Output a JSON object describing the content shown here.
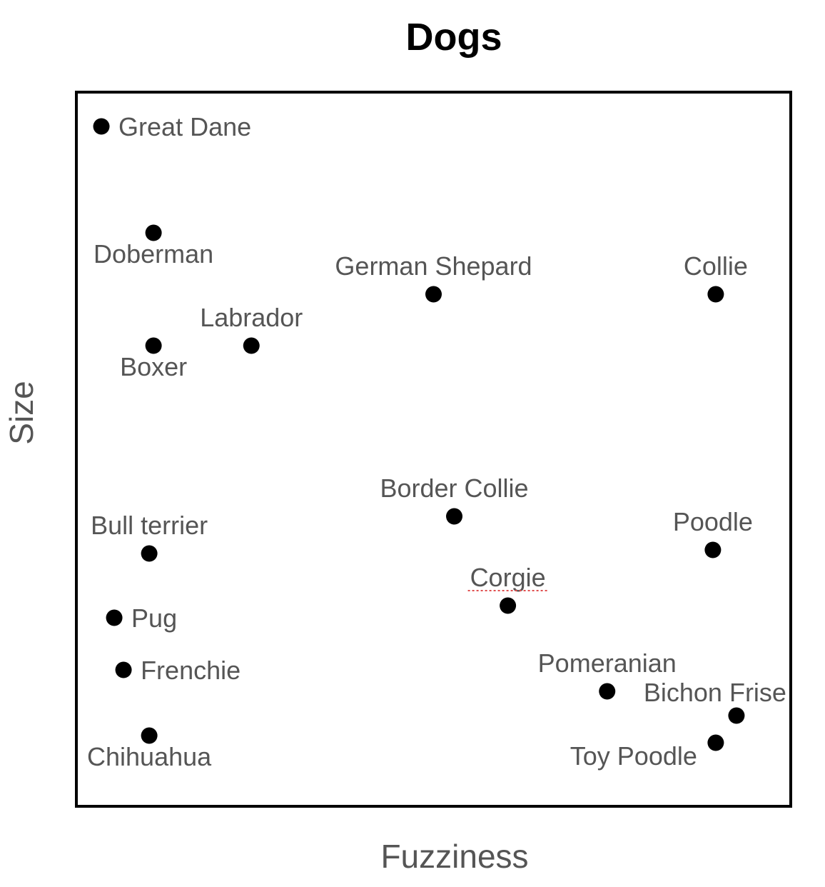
{
  "chart_data": {
    "type": "scatter",
    "title": "Dogs",
    "xlabel": "Fuzziness",
    "ylabel": "Size",
    "xlim": [
      0,
      100
    ],
    "ylim": [
      0,
      100
    ],
    "grid": false,
    "points": [
      {
        "label": "Great Dane",
        "x": 3.5,
        "y": 95.2,
        "label_pos": "right"
      },
      {
        "label": "Doberman",
        "x": 10.8,
        "y": 80.3,
        "label_pos": "below"
      },
      {
        "label": "German Shepard",
        "x": 50.0,
        "y": 71.7,
        "label_pos": "above"
      },
      {
        "label": "Collie",
        "x": 89.5,
        "y": 71.7,
        "label_pos": "above"
      },
      {
        "label": "Labrador",
        "x": 24.5,
        "y": 64.5,
        "label_pos": "above"
      },
      {
        "label": "Boxer",
        "x": 10.8,
        "y": 64.5,
        "label_pos": "below"
      },
      {
        "label": "Border Collie",
        "x": 52.9,
        "y": 40.6,
        "label_pos": "above"
      },
      {
        "label": "Bull terrier",
        "x": 10.2,
        "y": 35.4,
        "label_pos": "above"
      },
      {
        "label": "Poodle",
        "x": 89.1,
        "y": 35.9,
        "label_pos": "above"
      },
      {
        "label": "Corgie",
        "x": 60.4,
        "y": 28.1,
        "label_pos": "above"
      },
      {
        "label": "Pug",
        "x": 5.3,
        "y": 26.4,
        "label_pos": "right"
      },
      {
        "label": "Frenchie",
        "x": 6.6,
        "y": 19.1,
        "label_pos": "right"
      },
      {
        "label": "Pomeranian",
        "x": 74.3,
        "y": 16.1,
        "label_pos": "above"
      },
      {
        "label": "Bichon Frise",
        "x": 92.4,
        "y": 12.7,
        "label_pos": "above-left"
      },
      {
        "label": "Toy Poodle",
        "x": 89.5,
        "y": 8.9,
        "label_pos": "left"
      },
      {
        "label": "Chihuahua",
        "x": 10.2,
        "y": 9.9,
        "label_pos": "below"
      }
    ]
  }
}
